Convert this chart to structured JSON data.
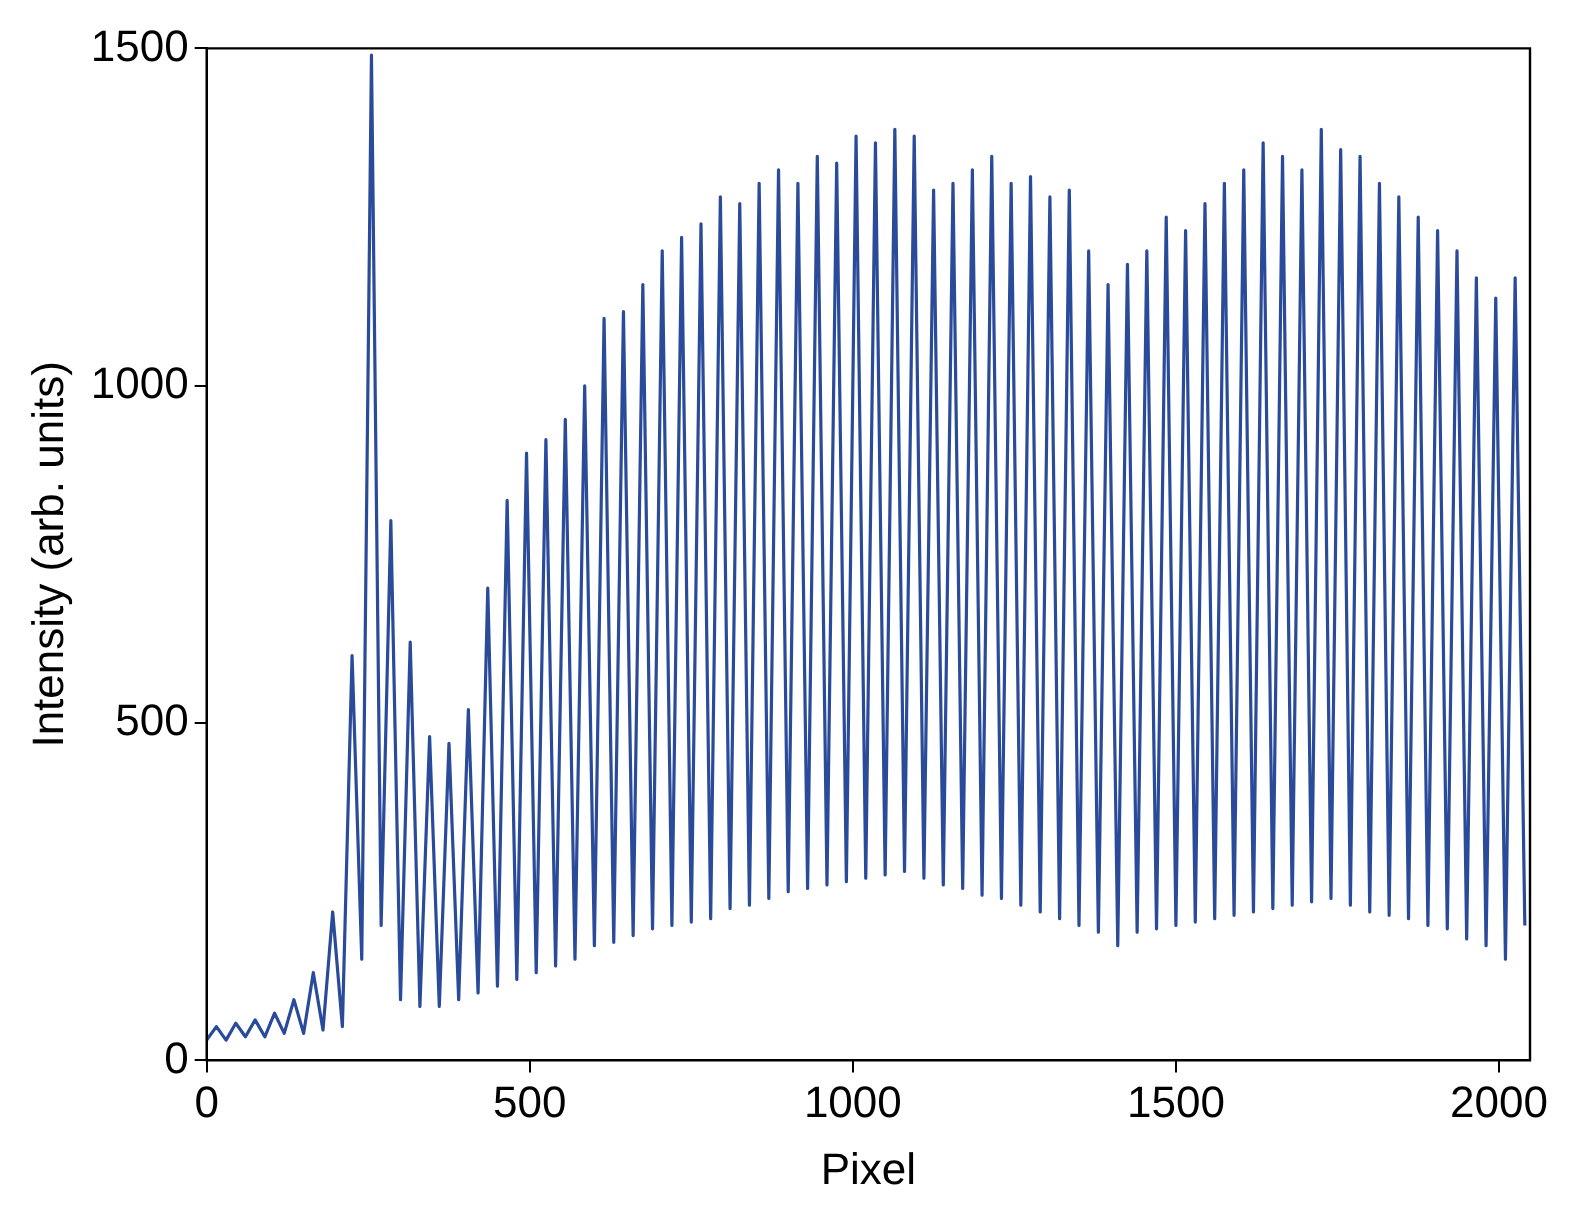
{
  "chart_data": {
    "type": "line",
    "xlabel": "Pixel",
    "ylabel": "Intensity (arb. units)",
    "xlim": [
      0,
      2048
    ],
    "xticks": [
      0,
      500,
      1000,
      1500,
      2000
    ],
    "ylim": [
      0,
      1500
    ],
    "yticks": [
      0,
      500,
      1000,
      1500
    ],
    "grid": false,
    "legend": false,
    "marker": "none",
    "line_style": "solid",
    "x": [
      0,
      15,
      30,
      45,
      60,
      75,
      90,
      105,
      120,
      135,
      150,
      165,
      180,
      195,
      210,
      225,
      240,
      255,
      270,
      285,
      300,
      315,
      330,
      345,
      360,
      375,
      390,
      405,
      420,
      435,
      450,
      465,
      480,
      495,
      510,
      525,
      540,
      555,
      570,
      585,
      600,
      615,
      630,
      645,
      660,
      675,
      690,
      705,
      720,
      735,
      750,
      765,
      780,
      795,
      810,
      825,
      840,
      855,
      870,
      885,
      900,
      915,
      930,
      945,
      960,
      975,
      990,
      1005,
      1020,
      1035,
      1050,
      1065,
      1080,
      1095,
      1110,
      1125,
      1140,
      1155,
      1170,
      1185,
      1200,
      1215,
      1230,
      1245,
      1260,
      1275,
      1290,
      1305,
      1320,
      1335,
      1350,
      1365,
      1380,
      1395,
      1410,
      1425,
      1440,
      1455,
      1470,
      1485,
      1500,
      1515,
      1530,
      1545,
      1560,
      1575,
      1590,
      1605,
      1620,
      1635,
      1650,
      1665,
      1680,
      1695,
      1710,
      1725,
      1740,
      1755,
      1770,
      1785,
      1800,
      1815,
      1830,
      1845,
      1860,
      1875,
      1890,
      1905,
      1920,
      1935,
      1950,
      1965,
      1980,
      1995,
      2010,
      2025,
      2040
    ],
    "series": [
      {
        "color": "#2a4a9a",
        "values": [
          30,
          50,
          30,
          55,
          35,
          60,
          35,
          70,
          40,
          90,
          40,
          130,
          45,
          220,
          50,
          600,
          150,
          1490,
          200,
          800,
          90,
          620,
          80,
          480,
          80,
          470,
          90,
          520,
          100,
          700,
          110,
          830,
          120,
          900,
          130,
          920,
          140,
          950,
          150,
          1000,
          170,
          1100,
          175,
          1110,
          185,
          1150,
          195,
          1200,
          200,
          1220,
          205,
          1240,
          210,
          1280,
          225,
          1270,
          230,
          1300,
          240,
          1320,
          250,
          1300,
          255,
          1340,
          260,
          1330,
          265,
          1370,
          270,
          1360,
          275,
          1380,
          280,
          1370,
          270,
          1290,
          260,
          1300,
          255,
          1320,
          245,
          1340,
          240,
          1300,
          230,
          1310,
          220,
          1280,
          210,
          1290,
          200,
          1200,
          190,
          1150,
          170,
          1180,
          190,
          1200,
          195,
          1250,
          200,
          1230,
          205,
          1270,
          210,
          1300,
          215,
          1320,
          220,
          1360,
          225,
          1340,
          230,
          1320,
          235,
          1380,
          240,
          1350,
          230,
          1340,
          220,
          1300,
          215,
          1280,
          210,
          1250,
          200,
          1230,
          195,
          1200,
          180,
          1160,
          170,
          1130,
          150,
          1160,
          200
        ]
      }
    ]
  }
}
